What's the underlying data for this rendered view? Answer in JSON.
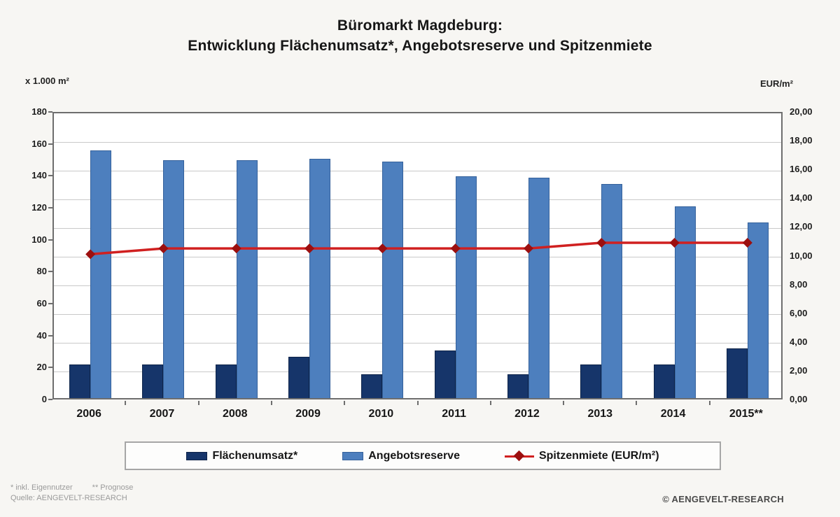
{
  "title": {
    "line1": "Büromarkt Magdeburg:",
    "line2": "Entwicklung Flächenumsatz*, Angebotsreserve und Spitzenmiete"
  },
  "chart_data": {
    "type": "bar",
    "categories": [
      "2006",
      "2007",
      "2008",
      "2009",
      "2010",
      "2011",
      "2012",
      "2013",
      "2014",
      "2015**"
    ],
    "series": [
      {
        "name": "Flächenumsatz*",
        "type": "bar",
        "axis": "left",
        "color": "#16356a",
        "values": [
          21,
          21,
          21,
          26,
          15,
          30,
          15,
          21,
          21,
          31
        ]
      },
      {
        "name": "Angebotsreserve",
        "type": "bar",
        "axis": "left",
        "color": "#4d7fbe",
        "values": [
          155,
          149,
          149,
          150,
          148,
          139,
          138,
          134,
          120,
          110
        ]
      },
      {
        "name": "Spitzenmiete (EUR/m²)",
        "type": "line",
        "axis": "right",
        "color": "#d02020",
        "marker_color": "#9c0f0f",
        "values": [
          10.2,
          10.6,
          10.6,
          10.6,
          10.6,
          10.6,
          10.6,
          11.0,
          11.0,
          11.0
        ]
      }
    ],
    "left_axis": {
      "label": "x 1.000 m²",
      "min": 0,
      "max": 180,
      "step": 20,
      "ticks": [
        "0",
        "20",
        "40",
        "60",
        "80",
        "100",
        "120",
        "140",
        "160",
        "180"
      ]
    },
    "right_axis": {
      "label": "EUR/m²",
      "min": 0,
      "max": 20,
      "step": 2,
      "ticks": [
        "0,00",
        "2,00",
        "4,00",
        "6,00",
        "8,00",
        "10,00",
        "12,00",
        "14,00",
        "16,00",
        "18,00",
        "20,00"
      ]
    },
    "grid": "on",
    "legend_position": "bottom"
  },
  "footnotes": {
    "note1": "* inkl. Eigennutzer",
    "note2": "** Prognose",
    "source": "Quelle: AENGEVELT-RESEARCH"
  },
  "copyright": "© AENGEVELT-RESEARCH"
}
